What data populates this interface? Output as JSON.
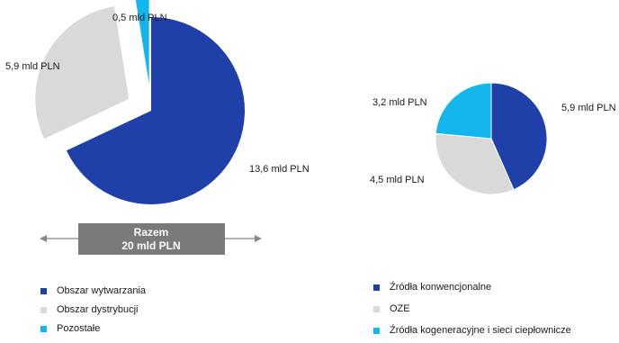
{
  "chart_data": [
    {
      "type": "pie",
      "exploded": true,
      "categories": [
        "Obszar wytwarzania",
        "Obszar dystrybucji",
        "Pozostałe"
      ],
      "values": [
        13.6,
        5.9,
        0.5
      ],
      "unit": "mld PLN",
      "data_labels": [
        "13,6 mld PLN",
        "5,9 mld PLN",
        "0,5 mld PLN"
      ],
      "colors": [
        "#1f40a8",
        "#d9d9d9",
        "#12b5ec"
      ],
      "total_label_line1": "Razem",
      "total_label_line2": "20 mld PLN",
      "legend_position": "bottom-left"
    },
    {
      "type": "pie",
      "exploded": false,
      "categories": [
        "Źródła konwencjonalne",
        "OZE",
        "Źródła kogeneracyjne i sieci ciepłownicze"
      ],
      "values": [
        5.9,
        4.5,
        3.2
      ],
      "unit": "mld PLN",
      "data_labels": [
        "5,9 mld PLN",
        "4,5 mld PLN",
        "3,2 mld PLN"
      ],
      "colors": [
        "#1f40a8",
        "#d9d9d9",
        "#12b5ec"
      ],
      "legend_position": "bottom-right"
    }
  ]
}
